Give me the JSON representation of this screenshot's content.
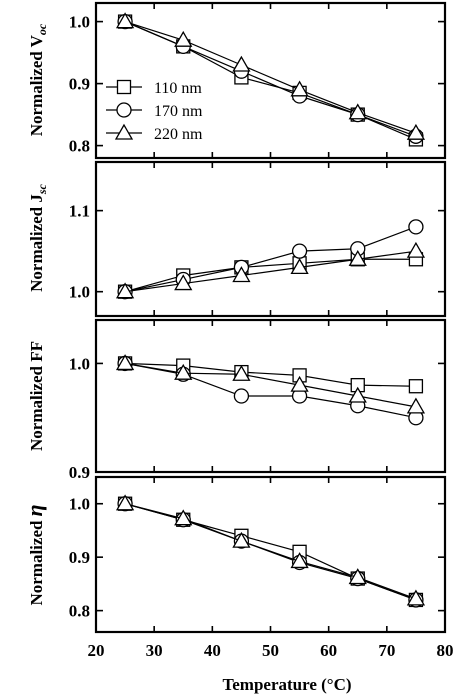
{
  "chart_data": [
    {
      "type": "line",
      "ylabel": "Normalized V",
      "ylabel_sub": "oc",
      "ylim": [
        0.78,
        1.03
      ],
      "yticks": [
        0.8,
        0.9,
        1.0
      ],
      "x": [
        25,
        35,
        45,
        55,
        65,
        75
      ],
      "series": [
        {
          "name": "110 nm",
          "marker": "square",
          "values": [
            1.0,
            0.96,
            0.91,
            0.885,
            0.85,
            0.81
          ]
        },
        {
          "name": "170 nm",
          "marker": "circle",
          "values": [
            1.0,
            0.96,
            0.92,
            0.88,
            0.85,
            0.815
          ]
        },
        {
          "name": "220 nm",
          "marker": "triangle",
          "values": [
            1.0,
            0.97,
            0.93,
            0.89,
            0.853,
            0.82
          ]
        }
      ],
      "legend": {
        "placement": "lower-left",
        "entries": [
          "110 nm",
          "170 nm",
          "220 nm"
        ]
      }
    },
    {
      "type": "line",
      "ylabel": "Normalized J",
      "ylabel_sub": "sc",
      "ylim": [
        0.97,
        1.16
      ],
      "yticks": [
        1.0,
        1.1
      ],
      "x": [
        25,
        35,
        45,
        55,
        65,
        75
      ],
      "series": [
        {
          "marker": "square",
          "values": [
            1.0,
            1.02,
            1.03,
            1.035,
            1.04,
            1.04
          ]
        },
        {
          "marker": "circle",
          "values": [
            1.0,
            1.015,
            1.03,
            1.05,
            1.053,
            1.08
          ]
        },
        {
          "marker": "triangle",
          "values": [
            1.0,
            1.01,
            1.02,
            1.03,
            1.04,
            1.05
          ]
        }
      ]
    },
    {
      "type": "line",
      "ylabel": "Normalized FF",
      "ylim": [
        0.9,
        1.04
      ],
      "yticks": [
        0.9,
        1.0
      ],
      "x": [
        25,
        35,
        45,
        55,
        65,
        75
      ],
      "series": [
        {
          "marker": "square",
          "values": [
            1.0,
            0.998,
            0.992,
            0.989,
            0.98,
            0.979
          ]
        },
        {
          "marker": "circle",
          "values": [
            1.0,
            0.99,
            0.97,
            0.97,
            0.961,
            0.95
          ]
        },
        {
          "marker": "triangle",
          "values": [
            1.0,
            0.991,
            0.99,
            0.98,
            0.97,
            0.96
          ]
        }
      ]
    },
    {
      "type": "line",
      "ylabel": "Normalized",
      "ylabel_symbol": "η",
      "ylim": [
        0.76,
        1.05
      ],
      "yticks": [
        0.8,
        0.9,
        1.0
      ],
      "xlim": [
        20,
        80
      ],
      "xticks": [
        20,
        30,
        40,
        50,
        60,
        70,
        80
      ],
      "xlabel": "Temperature (°C)",
      "x": [
        25,
        35,
        45,
        55,
        65,
        75
      ],
      "series": [
        {
          "marker": "square",
          "values": [
            1.0,
            0.97,
            0.94,
            0.91,
            0.86,
            0.82
          ]
        },
        {
          "marker": "circle",
          "values": [
            1.0,
            0.97,
            0.93,
            0.89,
            0.86,
            0.82
          ]
        },
        {
          "marker": "triangle",
          "values": [
            1.0,
            0.972,
            0.93,
            0.892,
            0.862,
            0.822
          ]
        }
      ]
    }
  ]
}
